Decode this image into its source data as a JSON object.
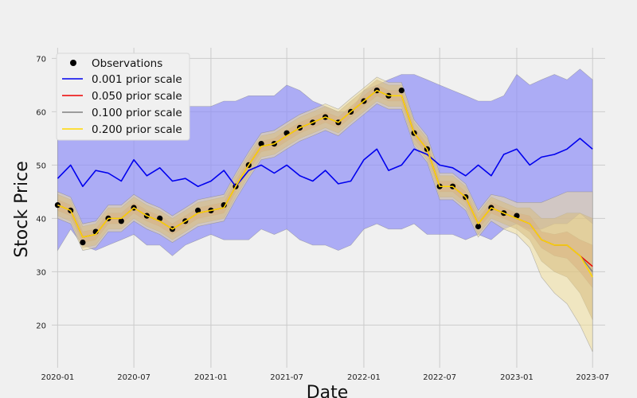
{
  "chart_data": {
    "type": "line",
    "title": "",
    "xlabel": "Date",
    "ylabel": "Stock Price",
    "x_range": [
      "2019-11-29",
      "2023-07-31"
    ],
    "ylim": [
      12,
      72
    ],
    "grid": true,
    "legend_position": "top-left",
    "x_ticks": [
      {
        "date": "2020-01-01",
        "label": "2020-01"
      },
      {
        "date": "2020-07-01",
        "label": "2020-07"
      },
      {
        "date": "2021-01-01",
        "label": "2021-01"
      },
      {
        "date": "2021-07-01",
        "label": "2021-07"
      },
      {
        "date": "2022-01-01",
        "label": "2022-01"
      },
      {
        "date": "2022-07-01",
        "label": "2022-07"
      },
      {
        "date": "2023-01-01",
        "label": "2023-01"
      },
      {
        "date": "2023-07-01",
        "label": "2023-07"
      }
    ],
    "y_ticks": [
      {
        "value": 20,
        "label": "20"
      },
      {
        "value": 30,
        "label": "30"
      },
      {
        "value": 40,
        "label": "40"
      },
      {
        "value": 50,
        "label": "50"
      },
      {
        "value": 60,
        "label": "60"
      },
      {
        "value": 70,
        "label": "70"
      }
    ],
    "observations": {
      "name": "Observations",
      "color": "#000000",
      "x": [
        "2020-01-01",
        "2020-02-01",
        "2020-03-01",
        "2020-04-01",
        "2020-05-01",
        "2020-06-01",
        "2020-07-01",
        "2020-08-01",
        "2020-09-01",
        "2020-10-01",
        "2020-11-01",
        "2020-12-01",
        "2021-01-01",
        "2021-02-01",
        "2021-03-01",
        "2021-04-01",
        "2021-05-01",
        "2021-06-01",
        "2021-07-01",
        "2021-08-01",
        "2021-09-01",
        "2021-10-01",
        "2021-11-01",
        "2021-12-01",
        "2022-01-01",
        "2022-02-01",
        "2022-03-01",
        "2022-04-01",
        "2022-05-01",
        "2022-06-01",
        "2022-07-01",
        "2022-08-01",
        "2022-09-01",
        "2022-10-01",
        "2022-11-01",
        "2022-12-01",
        "2023-01-01"
      ],
      "y": [
        42.5,
        41.5,
        35.5,
        37.5,
        40,
        39.5,
        42,
        40.5,
        40,
        38,
        39.5,
        41.5,
        41.5,
        42.5,
        46,
        50,
        54,
        54,
        56,
        57,
        58,
        59,
        58,
        60,
        62,
        64,
        63,
        64,
        56,
        53,
        46,
        46,
        44,
        38.5,
        42,
        41,
        40.5
      ]
    },
    "series": [
      {
        "name": "0.001 prior scale",
        "color": "#0000ee",
        "band_color": "#8f8ff7",
        "x": [
          "2020-01-01",
          "2020-02-01",
          "2020-03-01",
          "2020-04-01",
          "2020-05-01",
          "2020-06-01",
          "2020-07-01",
          "2020-08-01",
          "2020-09-01",
          "2020-10-01",
          "2020-11-01",
          "2020-12-01",
          "2021-01-01",
          "2021-02-01",
          "2021-03-01",
          "2021-04-01",
          "2021-05-01",
          "2021-06-01",
          "2021-07-01",
          "2021-08-01",
          "2021-09-01",
          "2021-10-01",
          "2021-11-01",
          "2021-12-01",
          "2022-01-01",
          "2022-02-01",
          "2022-03-01",
          "2022-04-01",
          "2022-05-01",
          "2022-06-01",
          "2022-07-01",
          "2022-08-01",
          "2022-09-01",
          "2022-10-01",
          "2022-11-01",
          "2022-12-01",
          "2023-01-01",
          "2023-02-01",
          "2023-03-01",
          "2023-04-01",
          "2023-05-01",
          "2023-06-01",
          "2023-07-01"
        ],
        "y": [
          47.5,
          50,
          46,
          49,
          48.5,
          47,
          51,
          48,
          49.5,
          47,
          47.5,
          46,
          47,
          49,
          46,
          49,
          50,
          48.5,
          50,
          48,
          47,
          49,
          46.5,
          47,
          51,
          53,
          49,
          50,
          53,
          52,
          50,
          49.5,
          48,
          50,
          48,
          52,
          53,
          50,
          51.5,
          52,
          53,
          55,
          53
        ],
        "lower": [
          34,
          38,
          35,
          34,
          35,
          36,
          37,
          35,
          35,
          33,
          35,
          36,
          37,
          36,
          36,
          36,
          38,
          37,
          38,
          36,
          35,
          35,
          34,
          35,
          38,
          39,
          38,
          38,
          39,
          37,
          37,
          37,
          36,
          37,
          36,
          38,
          39,
          38,
          38,
          39,
          39,
          41,
          39
        ],
        "upper": [
          63,
          64,
          61,
          61,
          61,
          60,
          63,
          62,
          62,
          61,
          61,
          61,
          61,
          62,
          62,
          63,
          63,
          63,
          65,
          64,
          62,
          61,
          60,
          60,
          64,
          65,
          66,
          67,
          67,
          66,
          65,
          64,
          63,
          62,
          62,
          63,
          67,
          65,
          66,
          67,
          66,
          68,
          66
        ]
      },
      {
        "name": "0.050 prior scale",
        "color": "#ee0000",
        "band_color": "#c86464",
        "x": [
          "2020-01-01",
          "2020-02-01",
          "2020-03-01",
          "2020-04-01",
          "2020-05-01",
          "2020-06-01",
          "2020-07-01",
          "2020-08-01",
          "2020-09-01",
          "2020-10-01",
          "2020-11-01",
          "2020-12-01",
          "2021-01-01",
          "2021-02-01",
          "2021-03-01",
          "2021-04-01",
          "2021-05-01",
          "2021-06-01",
          "2021-07-01",
          "2021-08-01",
          "2021-09-01",
          "2021-10-01",
          "2021-11-01",
          "2021-12-01",
          "2022-01-01",
          "2022-02-01",
          "2022-03-01",
          "2022-04-01",
          "2022-05-01",
          "2022-06-01",
          "2022-07-01",
          "2022-08-01",
          "2022-09-01",
          "2022-10-01",
          "2022-11-01",
          "2022-12-01",
          "2023-01-01",
          "2023-02-01",
          "2023-03-01",
          "2023-04-01",
          "2023-05-01",
          "2023-06-01",
          "2023-07-01"
        ],
        "y": [
          42.5,
          41.5,
          36.5,
          37,
          40,
          40,
          42,
          40.5,
          39.5,
          38,
          39.5,
          41,
          41.5,
          42,
          46,
          50,
          53.5,
          54,
          55.5,
          57,
          58,
          59,
          58,
          60,
          62,
          64,
          63,
          63,
          56,
          53,
          46,
          46,
          44,
          39,
          42,
          41,
          40,
          39,
          36,
          35,
          35,
          33,
          31
        ],
        "lower": [
          41.5,
          40.5,
          35.5,
          36,
          39,
          39,
          41,
          39.5,
          38.5,
          37,
          38.5,
          40,
          40.5,
          41,
          45,
          49,
          52.5,
          53,
          54.5,
          56,
          57,
          58,
          57,
          59,
          61,
          63,
          62,
          62,
          55,
          52,
          45,
          45,
          43,
          38,
          41,
          40,
          39,
          37.5,
          34.5,
          33,
          32.5,
          30,
          27
        ],
        "upper": [
          43.5,
          42.5,
          37.5,
          38,
          41,
          41,
          43,
          41.5,
          40.5,
          39,
          40.5,
          42,
          42.5,
          43,
          47,
          51,
          54.5,
          55,
          56.5,
          58,
          59,
          60,
          59,
          61,
          63,
          65,
          64,
          64,
          57,
          54,
          47,
          47,
          45,
          40,
          43,
          42,
          41,
          40.5,
          37.5,
          37,
          37.5,
          36,
          35
        ]
      },
      {
        "name": "0.100 prior scale",
        "color": "#808080",
        "band_color": "#b6915c",
        "x": [
          "2020-01-01",
          "2020-02-01",
          "2020-03-01",
          "2020-04-01",
          "2020-05-01",
          "2020-06-01",
          "2020-07-01",
          "2020-08-01",
          "2020-09-01",
          "2020-10-01",
          "2020-11-01",
          "2020-12-01",
          "2021-01-01",
          "2021-02-01",
          "2021-03-01",
          "2021-04-01",
          "2021-05-01",
          "2021-06-01",
          "2021-07-01",
          "2021-08-01",
          "2021-09-01",
          "2021-10-01",
          "2021-11-01",
          "2021-12-01",
          "2022-01-01",
          "2022-02-01",
          "2022-03-01",
          "2022-04-01",
          "2022-05-01",
          "2022-06-01",
          "2022-07-01",
          "2022-08-01",
          "2022-09-01",
          "2022-10-01",
          "2022-11-01",
          "2022-12-01",
          "2023-01-01",
          "2023-02-01",
          "2023-03-01",
          "2023-04-01",
          "2023-05-01",
          "2023-06-01",
          "2023-07-01"
        ],
        "y": [
          42.5,
          41.5,
          36.5,
          37,
          40,
          40,
          42,
          40.5,
          39.5,
          38,
          39.5,
          41,
          41.5,
          42,
          46,
          50,
          53.5,
          54,
          55.5,
          57,
          58,
          59,
          58,
          60,
          62,
          64,
          63,
          63,
          56,
          53,
          46,
          46,
          44,
          39,
          42,
          41,
          40,
          39,
          36,
          35,
          35,
          33,
          30
        ],
        "lower": [
          40.5,
          39.5,
          34.5,
          35,
          38,
          38,
          40,
          38.5,
          37.5,
          36,
          37.5,
          39,
          39.5,
          40,
          44,
          48,
          51.5,
          52,
          53.5,
          55,
          56,
          57,
          56,
          58,
          60,
          62,
          61,
          61,
          54,
          51,
          44,
          44,
          42,
          37,
          40,
          39,
          38,
          36,
          32,
          30,
          29,
          26,
          21
        ],
        "upper": [
          44.5,
          43.5,
          38.5,
          39,
          42,
          42,
          44,
          42.5,
          41.5,
          40,
          41.5,
          43,
          43.5,
          44,
          48,
          52,
          55.5,
          56,
          57.5,
          59,
          60,
          61,
          60,
          62,
          64,
          66,
          65,
          65,
          58,
          55,
          48,
          48,
          46,
          41,
          44,
          43,
          42,
          42,
          40,
          40,
          41,
          41,
          40
        ]
      },
      {
        "name": "0.200 prior scale",
        "color": "#ffd700",
        "band_color": "#f0df9a",
        "x": [
          "2020-01-01",
          "2020-02-01",
          "2020-03-01",
          "2020-04-01",
          "2020-05-01",
          "2020-06-01",
          "2020-07-01",
          "2020-08-01",
          "2020-09-01",
          "2020-10-01",
          "2020-11-01",
          "2020-12-01",
          "2021-01-01",
          "2021-02-01",
          "2021-03-01",
          "2021-04-01",
          "2021-05-01",
          "2021-06-01",
          "2021-07-01",
          "2021-08-01",
          "2021-09-01",
          "2021-10-01",
          "2021-11-01",
          "2021-12-01",
          "2022-01-01",
          "2022-02-01",
          "2022-03-01",
          "2022-04-01",
          "2022-05-01",
          "2022-06-01",
          "2022-07-01",
          "2022-08-01",
          "2022-09-01",
          "2022-10-01",
          "2022-11-01",
          "2022-12-01",
          "2023-01-01",
          "2023-02-01",
          "2023-03-01",
          "2023-04-01",
          "2023-05-01",
          "2023-06-01",
          "2023-07-01"
        ],
        "y": [
          42.5,
          41.5,
          36.5,
          37,
          40,
          40,
          42,
          40.5,
          39.5,
          38,
          39.5,
          41,
          41.5,
          42,
          46,
          50,
          53.5,
          54,
          55.5,
          57,
          58,
          59,
          58,
          60,
          62,
          64,
          63,
          63,
          56,
          53,
          46,
          46,
          44,
          39,
          42,
          41,
          40,
          39,
          36,
          35,
          35,
          33,
          29
        ],
        "lower": [
          40,
          39,
          34,
          34.5,
          37.5,
          37.5,
          39.5,
          38,
          37,
          35.5,
          37,
          38.5,
          39,
          39.5,
          43.5,
          47.5,
          51,
          51.5,
          53,
          54.5,
          55.5,
          56.5,
          55.5,
          57.5,
          59.5,
          61.5,
          60.5,
          60.5,
          53.5,
          50.5,
          43.5,
          43.5,
          41.5,
          36.5,
          39.5,
          38,
          37,
          34.5,
          29,
          26,
          24,
          20,
          15
        ],
        "upper": [
          45,
          44,
          39,
          39.5,
          42.5,
          42.5,
          44.5,
          43,
          42,
          40.5,
          42,
          43.5,
          44,
          44.5,
          48.5,
          52.5,
          56,
          56.5,
          58,
          59.5,
          60.5,
          61.5,
          60.5,
          62.5,
          64.5,
          66.5,
          65.5,
          65.5,
          58.5,
          55.5,
          48.5,
          48.5,
          46.5,
          41.5,
          44.5,
          44,
          43,
          43,
          43,
          44,
          45,
          45,
          45
        ]
      }
    ]
  }
}
